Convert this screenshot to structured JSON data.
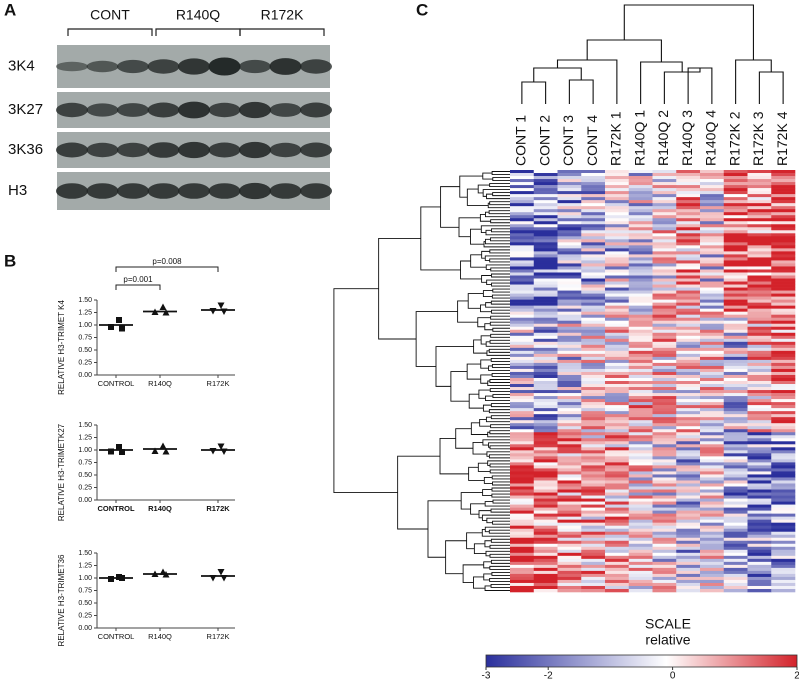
{
  "panel_a": {
    "letter": "A",
    "groups": [
      "CONT",
      "R140Q",
      "R172K"
    ],
    "rows": [
      "3K4",
      "3K27",
      "3K36",
      "H3"
    ]
  },
  "panel_b": {
    "letter": "B",
    "plots": [
      {
        "y_label": "RELATIVE H3-TRIMET K4",
        "categories": [
          "CONTROL",
          "R140Q",
          "R172K"
        ],
        "points": [
          [
            1.1,
            0.96,
            0.93
          ],
          [
            1.36,
            1.26,
            1.25
          ],
          [
            1.39,
            1.28,
            1.27
          ]
        ],
        "means": [
          1.0,
          1.27,
          1.3
        ],
        "p_values": [
          "p=0.001",
          "p=0.008"
        ],
        "ylim": [
          0,
          1.5
        ],
        "yticks": [
          {
            "value": 0,
            "label": "0.00"
          },
          {
            "value": 0.25,
            "label": "0.25"
          },
          {
            "value": 0.5,
            "label": "0.50"
          },
          {
            "value": 0.75,
            "label": "0.75"
          },
          {
            "value": 1,
            "label": "1.00"
          },
          {
            "value": 1.25,
            "label": "1.25"
          },
          {
            "value": 1.5,
            "label": "1.50"
          }
        ]
      },
      {
        "y_label": "RELATIVE H3-TRIMETK27",
        "categories": [
          "CONTROL",
          "R140Q",
          "R172K"
        ],
        "points": [
          [
            1.06,
            0.97,
            0.96
          ],
          [
            1.08,
            0.98,
            0.97
          ],
          [
            1.07,
            0.98,
            0.97
          ]
        ],
        "means": [
          1.0,
          1.02,
          1.0
        ],
        "ylim": [
          0,
          1.5
        ],
        "yticks": [
          {
            "value": 0,
            "label": "0.00"
          },
          {
            "value": 0.25,
            "label": "0.25"
          },
          {
            "value": 0.5,
            "label": "0.50"
          },
          {
            "value": 0.75,
            "label": "0.75"
          },
          {
            "value": 1,
            "label": "1.00"
          },
          {
            "value": 1.25,
            "label": "1.25"
          },
          {
            "value": 1.5,
            "label": "1.50"
          }
        ]
      },
      {
        "y_label": "RELATIVE H3-TRIMET36",
        "categories": [
          "CONTROL",
          "R140Q",
          "R172K"
        ],
        "points": [
          [
            1.02,
            0.98,
            1.0
          ],
          [
            1.12,
            1.08,
            1.07
          ],
          [
            1.12,
            1.0,
            1.0
          ]
        ],
        "means": [
          1.0,
          1.08,
          1.04
        ],
        "ylim": [
          0,
          1.5
        ],
        "yticks": [
          {
            "value": 0,
            "label": "0.00"
          },
          {
            "value": 0.25,
            "label": "0.25"
          },
          {
            "value": 0.5,
            "label": "0.50"
          },
          {
            "value": 0.75,
            "label": "0.75"
          },
          {
            "value": 1,
            "label": "1.00"
          },
          {
            "value": 1.25,
            "label": "1.25"
          },
          {
            "value": 1.5,
            "label": "1.50"
          }
        ]
      }
    ]
  },
  "panel_c": {
    "letter": "C",
    "columns": [
      "CONT 1",
      "CONT 2",
      "CONT 3",
      "CONT 4",
      "R172K 1",
      "R140Q 1",
      "R140Q 2",
      "R140Q 3",
      "R140Q 4",
      "R172K 2",
      "R172K 3",
      "R172K 4"
    ],
    "scale": {
      "title": "SCALE",
      "subtitle": "relative",
      "lim": [
        -3,
        2
      ],
      "ticks": [
        -3,
        -2,
        0,
        2
      ]
    }
  }
}
